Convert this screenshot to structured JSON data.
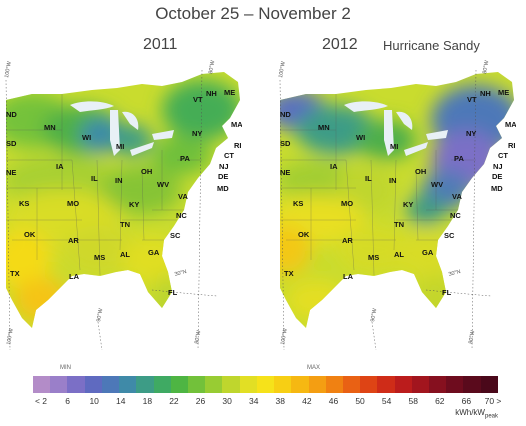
{
  "title": "October 25 – November 2",
  "panels": [
    {
      "year": "2011",
      "event": ""
    },
    {
      "year": "2012",
      "event": "Hurricane Sandy"
    }
  ],
  "states": [
    "ND",
    "MN",
    "WI",
    "MI",
    "SD",
    "NE",
    "IA",
    "IL",
    "IN",
    "OH",
    "PA",
    "NY",
    "VT",
    "NH",
    "ME",
    "MA",
    "RI",
    "CT",
    "NJ",
    "DE",
    "MD",
    "WV",
    "VA",
    "KY",
    "MO",
    "KS",
    "OK",
    "AR",
    "TN",
    "NC",
    "SC",
    "GA",
    "AL",
    "MS",
    "LA",
    "TX",
    "FL"
  ],
  "meridians": {
    "w100_top": "100°W",
    "w80_top": "80°W",
    "w90_bot": "90°W",
    "w100_bot": "100°W",
    "w80_bot": "80°W",
    "n30": "30°N"
  },
  "legend": {
    "min_label": "MIN",
    "max_label": "MAX",
    "colors": [
      "#b38cc8",
      "#9a7fc9",
      "#7b6fc6",
      "#5f6ac0",
      "#4d78b8",
      "#3f8aa8",
      "#3d9c86",
      "#3faa63",
      "#4eb543",
      "#72c13a",
      "#98cc33",
      "#bfd62d",
      "#e2df24",
      "#f6e21a",
      "#f7cf14",
      "#f6b812",
      "#f49e12",
      "#f08112",
      "#e96114",
      "#de4415",
      "#cf2c18",
      "#bb1c1c",
      "#a2151e",
      "#86101f",
      "#6e0c1e",
      "#5a0a1c",
      "#4a081a"
    ],
    "ticks": [
      "< 2",
      "6",
      "10",
      "14",
      "18",
      "22",
      "26",
      "30",
      "34",
      "38",
      "42",
      "46",
      "50",
      "54",
      "58",
      "62",
      "66",
      "70 >"
    ],
    "unit": "kWh/kW",
    "unit_sub": "peak"
  }
}
